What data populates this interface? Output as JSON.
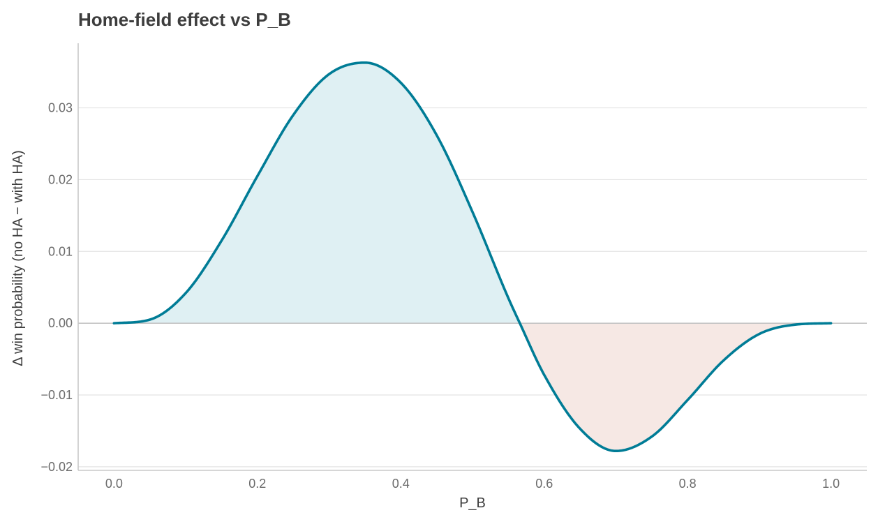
{
  "chart_data": {
    "type": "area",
    "title": "Home-field effect vs P_B",
    "xlabel": "P_B",
    "ylabel": "Δ win probability (no HA − with HA)",
    "xlim": [
      -0.05,
      1.05
    ],
    "ylim": [
      -0.0205,
      0.039
    ],
    "xticks": [
      0.0,
      0.2,
      0.4,
      0.6,
      0.8,
      1.0
    ],
    "xtick_labels": [
      "0.0",
      "0.2",
      "0.4",
      "0.6",
      "0.8",
      "1.0"
    ],
    "yticks": [
      -0.02,
      -0.01,
      0.0,
      0.01,
      0.02,
      0.03
    ],
    "ytick_labels": [
      "−0.02",
      "−0.01",
      "0.00",
      "0.01",
      "0.02",
      "0.03"
    ],
    "grid": "horizontal",
    "series": [
      {
        "x": [
          0.0,
          0.05,
          0.1,
          0.15,
          0.2,
          0.25,
          0.3,
          0.35,
          0.4,
          0.45,
          0.5,
          0.55,
          0.566,
          0.6,
          0.65,
          0.7,
          0.75,
          0.8,
          0.85,
          0.9,
          0.95,
          1.0
        ],
        "y": [
          0.0,
          0.0005,
          0.0042,
          0.0115,
          0.0205,
          0.029,
          0.0347,
          0.0363,
          0.0335,
          0.0262,
          0.0155,
          0.0035,
          0.0,
          -0.0072,
          -0.0147,
          -0.0178,
          -0.0158,
          -0.0107,
          -0.0052,
          -0.0015,
          -0.0002,
          0.0
        ]
      }
    ],
    "colors": {
      "line": "#007c96",
      "positive_fill": "#dff0f3",
      "negative_fill": "#f6e8e4",
      "grid": "#e3e3e3",
      "zero_line": "#c4c4c4",
      "axis": "#c8c8c8"
    }
  }
}
